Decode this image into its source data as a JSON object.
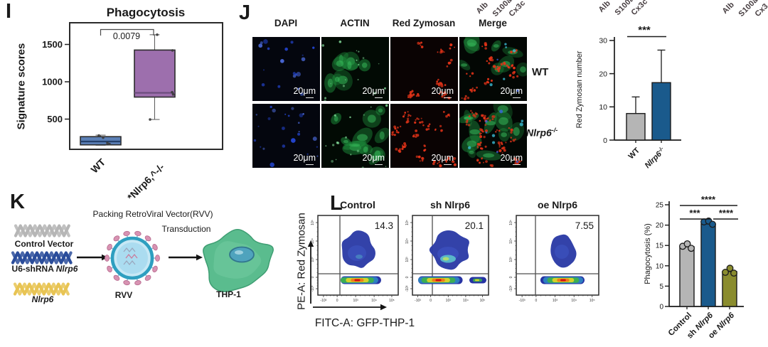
{
  "top_labels": {
    "groups": [
      {
        "items": [
          "Alb",
          "S100a",
          "Cx3c"
        ]
      },
      {
        "items": [
          "Alb",
          "S100a",
          "Cx3c"
        ]
      },
      {
        "items": [
          "Alb",
          "S100a",
          "Cx3"
        ]
      }
    ]
  },
  "panels": {
    "I": {
      "label": "I",
      "title": "Phagocytosis",
      "ylabel": "Signature scores",
      "pvalue": "0.0079",
      "yticks": [
        500,
        1000,
        1500
      ],
      "groups": [
        {
          "parts": [
            [
              "WT"
            ]
          ],
          "color": "#5b7fb5",
          "median_color": "#24406b",
          "whislo": 150,
          "q1": 155,
          "med": 200,
          "q3": 265,
          "whishi": 285,
          "points": [
            281,
            252,
            180,
            166
          ]
        },
        {
          "parts": [
            [
              "*Nlrp6",
              "^-/-"
            ]
          ],
          "color": "#9d6fad",
          "median_color": "#6a4c7c",
          "whislo": 495,
          "q1": 795,
          "med": 852,
          "q3": 1425,
          "whishi": 1630,
          "points": [
            1630,
            1420,
            860,
            830,
            495
          ]
        }
      ]
    },
    "J": {
      "label": "J",
      "columns": [
        "DAPI",
        "ACTIN",
        "Red Zymosan",
        "Merge"
      ],
      "rows": [
        {
          "name": "WT",
          "sup": ""
        },
        {
          "name": "Nlrp6",
          "sup": "-/-"
        }
      ],
      "scale_label": "20μm",
      "micro": {
        "channels": [
          "dapi",
          "actin",
          "zymosan",
          "merge"
        ],
        "bg": {
          "dapi": "#04060e",
          "actin": "#020a04",
          "zymosan": "#0a0303",
          "merge": "#030704"
        },
        "colors": {
          "dapi_dot": "#2547d8",
          "dapi_bright": "#5273ee",
          "actin": "#1d8a3a",
          "actin_core": "#3abf5e",
          "actin_speck": "#8ae6a1",
          "zymosan": "#e23318",
          "merge_cyan": "#3ec6e0",
          "merge_blue": "#3b62e8"
        }
      },
      "bar_chart": {
        "ylabel": "Red Zymosan number",
        "yticks": [
          0,
          10,
          20,
          30
        ],
        "categories": [
          [
            "WT"
          ],
          [
            "*Nlrp6",
            "^-/-"
          ]
        ],
        "values": [
          8,
          17.3
        ],
        "errors": [
          5,
          9.8
        ],
        "colors": [
          "#b5b5b5",
          "#1a5a8c"
        ],
        "sig_label": "***"
      }
    },
    "K": {
      "label": "K",
      "top_caption": "Packing RetroViral Vector(RVV)",
      "arrow_caption": "Transduction",
      "vectors": [
        {
          "prefix": "Control Vector",
          "gene": "",
          "color": "#b6b6b6"
        },
        {
          "prefix": "U6-shRNA ",
          "gene": "Nlrp6",
          "color": "#2b4d9b"
        },
        {
          "prefix": "",
          "gene": "Nlrp6",
          "color": "#e8c453"
        }
      ],
      "virus_label": "RVV",
      "cell_label": "THP-1"
    },
    "L": {
      "label": "L",
      "xlabel": "FITC-A: GFP-THP-1",
      "ylabel": "PE-A: Red Zymosan",
      "x_ticks": [
        "-10³",
        "0",
        "10³",
        "10⁴",
        "10⁵"
      ],
      "y_ticks": [
        "10⁵",
        "10⁴",
        "10³",
        "0",
        "-10³"
      ],
      "plots": [
        {
          "title": "Control",
          "percent": "14.3"
        },
        {
          "title": "sh Nlrp6",
          "percent": "20.1"
        },
        {
          "title": "oe Nlrp6",
          "percent": "7.55"
        }
      ],
      "bar_chart": {
        "ylabel": "Phagocytosis (%)",
        "yticks": [
          0,
          5,
          10,
          15,
          20,
          25
        ],
        "categories": [
          [
            "Control"
          ],
          [
            "sh ",
            "*Nlrp6"
          ],
          [
            "oe ",
            "*Nlrp6"
          ]
        ],
        "values": [
          14.7,
          20.3,
          8.6
        ],
        "dots": [
          [
            14.8,
            15.4,
            14.3
          ],
          [
            20.8,
            21.0,
            20.2
          ],
          [
            8.4,
            9.4,
            8.2
          ]
        ],
        "colors": [
          "#b5b5b5",
          "#1a5a8c",
          "#8a8c2e"
        ],
        "significance": [
          {
            "pair": [
              0,
              2
            ],
            "label": "****"
          },
          {
            "pair": [
              0,
              1
            ],
            "label": "***"
          },
          {
            "pair": [
              1,
              2
            ],
            "label": "****"
          }
        ]
      }
    }
  },
  "chart_data": [
    {
      "type": "box",
      "title": "Phagocytosis",
      "ylabel": "Signature scores",
      "categories": [
        "WT",
        "Nlrp6-/-"
      ],
      "stats": [
        {
          "whislo": 150,
          "q1": 155,
          "med": 200,
          "q3": 265,
          "whishi": 285,
          "points": [
            281,
            252,
            180,
            166
          ]
        },
        {
          "whislo": 495,
          "q1": 795,
          "med": 852,
          "q3": 1425,
          "whishi": 1630,
          "points": [
            1630,
            1420,
            860,
            830,
            495
          ]
        }
      ],
      "pvalue": 0.0079,
      "yticks": [
        500,
        1000,
        1500
      ],
      "ylim": [
        90,
        1790
      ]
    },
    {
      "type": "bar",
      "ylabel": "Red Zymosan number",
      "categories": [
        "WT",
        "Nlrp6-/-"
      ],
      "values": [
        8,
        17.3
      ],
      "errors": [
        5,
        9.8
      ],
      "ylim": [
        0,
        30
      ],
      "significance": [
        [
          "WT",
          "Nlrp6-/-",
          "***"
        ]
      ]
    },
    {
      "type": "bar",
      "ylabel": "Phagocytosis (%)",
      "categories": [
        "Control",
        "sh Nlrp6",
        "oe Nlrp6"
      ],
      "values": [
        14.7,
        20.3,
        8.6
      ],
      "points": [
        [
          14.8,
          15.4,
          14.3
        ],
        [
          20.8,
          21.0,
          20.2
        ],
        [
          8.4,
          9.4,
          8.2
        ]
      ],
      "ylim": [
        0,
        25
      ],
      "significance": [
        [
          "Control",
          "oe Nlrp6",
          "****"
        ],
        [
          "Control",
          "sh Nlrp6",
          "***"
        ],
        [
          "sh Nlrp6",
          "oe Nlrp6",
          "****"
        ]
      ]
    },
    {
      "type": "scatter",
      "xlabel": "FITC-A: GFP-THP-1",
      "ylabel": "PE-A: Red Zymosan",
      "plots": [
        {
          "title": "Control",
          "gate_percent": 14.3
        },
        {
          "title": "sh Nlrp6",
          "gate_percent": 20.1
        },
        {
          "title": "oe Nlrp6",
          "gate_percent": 7.55
        }
      ]
    }
  ]
}
